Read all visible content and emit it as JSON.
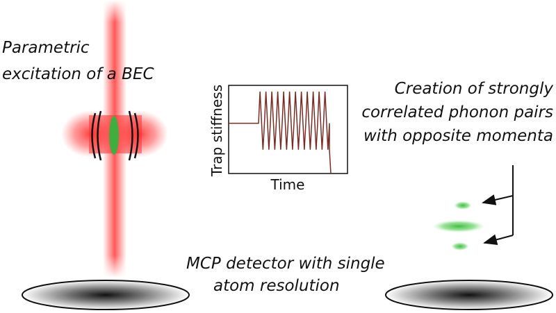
{
  "labels": {
    "left_line1": "Parametric",
    "left_line2": "excitation of a BEC",
    "right_line1": "Creation of strongly",
    "right_line2": "correlated phonon pairs",
    "right_line3": "with opposite momenta",
    "bottom_line1": "MCP detector with single",
    "bottom_line2": "atom resolution"
  },
  "inset_plot": {
    "xlabel": "Time",
    "ylabel": "Trap stiffness",
    "line_color": "#7a2a22",
    "baseline_level": 0.57,
    "oscillation_cycles": 12,
    "oscillation_low": 0.27,
    "oscillation_high": 0.93
  },
  "colors": {
    "laser_red": "#ff3b3b",
    "atom_cloud_green": "#3fbf3f",
    "detector_dark": "#1a1a1a",
    "outline": "#111111"
  }
}
